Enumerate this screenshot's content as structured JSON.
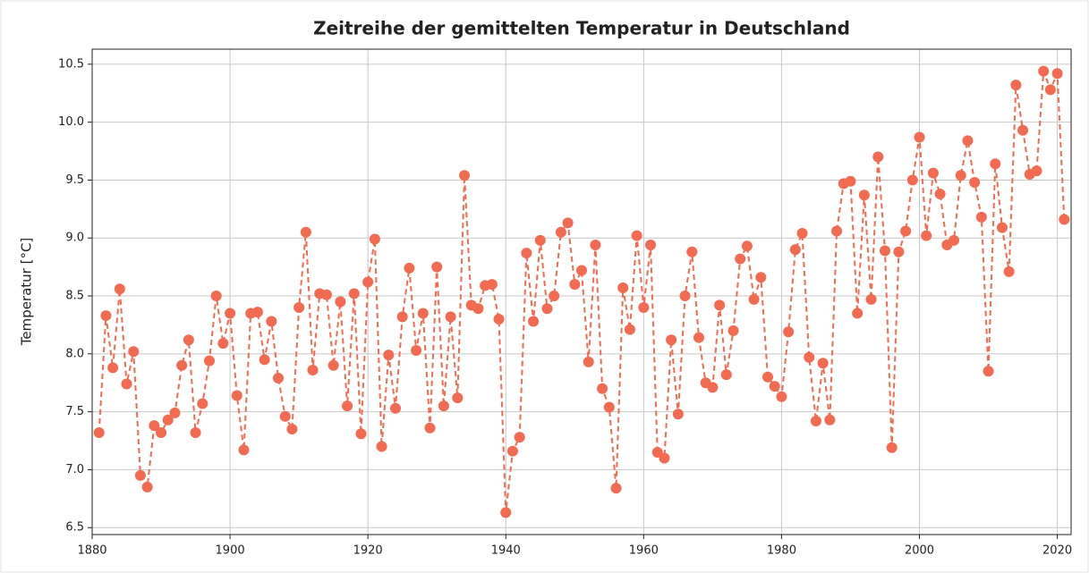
{
  "chart_data": {
    "type": "line",
    "title": "Zeitreihe der gemittelten Temperatur in Deutschland",
    "y_label": "Temperatur [°C]",
    "x": [
      1881,
      1882,
      1883,
      1884,
      1885,
      1886,
      1887,
      1888,
      1889,
      1890,
      1891,
      1892,
      1893,
      1894,
      1895,
      1896,
      1897,
      1898,
      1899,
      1900,
      1901,
      1902,
      1903,
      1904,
      1905,
      1906,
      1907,
      1908,
      1909,
      1910,
      1911,
      1912,
      1913,
      1914,
      1915,
      1916,
      1917,
      1918,
      1919,
      1920,
      1921,
      1922,
      1923,
      1924,
      1925,
      1926,
      1927,
      1928,
      1929,
      1930,
      1931,
      1932,
      1933,
      1934,
      1935,
      1936,
      1937,
      1938,
      1939,
      1940,
      1941,
      1942,
      1943,
      1944,
      1945,
      1946,
      1947,
      1948,
      1949,
      1950,
      1951,
      1952,
      1953,
      1954,
      1955,
      1956,
      1957,
      1958,
      1959,
      1960,
      1961,
      1962,
      1963,
      1964,
      1965,
      1966,
      1967,
      1968,
      1969,
      1970,
      1971,
      1972,
      1973,
      1974,
      1975,
      1976,
      1977,
      1978,
      1979,
      1980,
      1981,
      1982,
      1983,
      1984,
      1985,
      1986,
      1987,
      1988,
      1989,
      1990,
      1991,
      1992,
      1993,
      1994,
      1995,
      1996,
      1997,
      1998,
      1999,
      2000,
      2001,
      2002,
      2003,
      2004,
      2005,
      2006,
      2007,
      2008,
      2009,
      2010,
      2011,
      2012,
      2013,
      2014,
      2015,
      2016,
      2017,
      2018,
      2019,
      2020,
      2021
    ],
    "series": [
      {
        "name": "Temperatur",
        "color": "#f26b50",
        "values": [
          7.32,
          8.33,
          7.88,
          8.56,
          7.74,
          8.02,
          6.95,
          6.85,
          7.38,
          7.32,
          7.43,
          7.49,
          7.9,
          8.12,
          7.32,
          7.57,
          7.94,
          8.5,
          8.09,
          8.35,
          7.64,
          7.17,
          8.35,
          8.36,
          7.95,
          8.28,
          7.79,
          7.46,
          7.35,
          8.4,
          9.05,
          7.86,
          8.52,
          8.51,
          7.9,
          8.45,
          7.55,
          8.52,
          7.31,
          8.62,
          8.99,
          7.2,
          7.99,
          7.53,
          8.32,
          8.74,
          8.03,
          8.35,
          7.36,
          8.75,
          7.55,
          8.32,
          7.62,
          9.54,
          8.42,
          8.39,
          8.59,
          8.6,
          8.3,
          6.63,
          7.16,
          7.28,
          8.87,
          8.28,
          8.98,
          8.39,
          8.5,
          9.05,
          9.13,
          8.6,
          8.72,
          7.93,
          8.94,
          7.7,
          7.54,
          6.84,
          8.57,
          8.21,
          9.02,
          8.4,
          8.94,
          7.15,
          7.1,
          8.12,
          7.48,
          8.5,
          8.88,
          8.14,
          7.75,
          7.71,
          8.42,
          7.82,
          8.2,
          8.82,
          8.93,
          8.47,
          8.66,
          7.8,
          7.72,
          7.63,
          8.19,
          8.9,
          9.04,
          7.97,
          7.42,
          7.92,
          7.43,
          9.06,
          9.47,
          9.49,
          8.35,
          9.37,
          8.47,
          9.7,
          8.89,
          7.19,
          8.88,
          9.06,
          9.5,
          9.87,
          9.02,
          9.56,
          9.38,
          8.94,
          8.98,
          9.54,
          9.84,
          9.48,
          9.18,
          7.85,
          9.64,
          9.09,
          8.71,
          10.32,
          9.93,
          9.55,
          9.58,
          10.44,
          10.28,
          10.42,
          9.16
        ]
      }
    ],
    "xlim": [
      1880,
      2022
    ],
    "xticks": [
      1880,
      1900,
      1920,
      1940,
      1960,
      1980,
      2000,
      2020
    ],
    "ylim": [
      6.44,
      10.63
    ],
    "yticks": [
      6.5,
      {
        "value": 7,
        "label": "7.0"
      },
      7.5,
      {
        "value": 8,
        "label": "8.0"
      },
      8.5,
      {
        "value": 9,
        "label": "9.0"
      },
      9.5,
      {
        "value": 10,
        "label": "10.0"
      },
      10.5
    ],
    "grid": true,
    "line_style": "dashed",
    "marker": "circle"
  }
}
